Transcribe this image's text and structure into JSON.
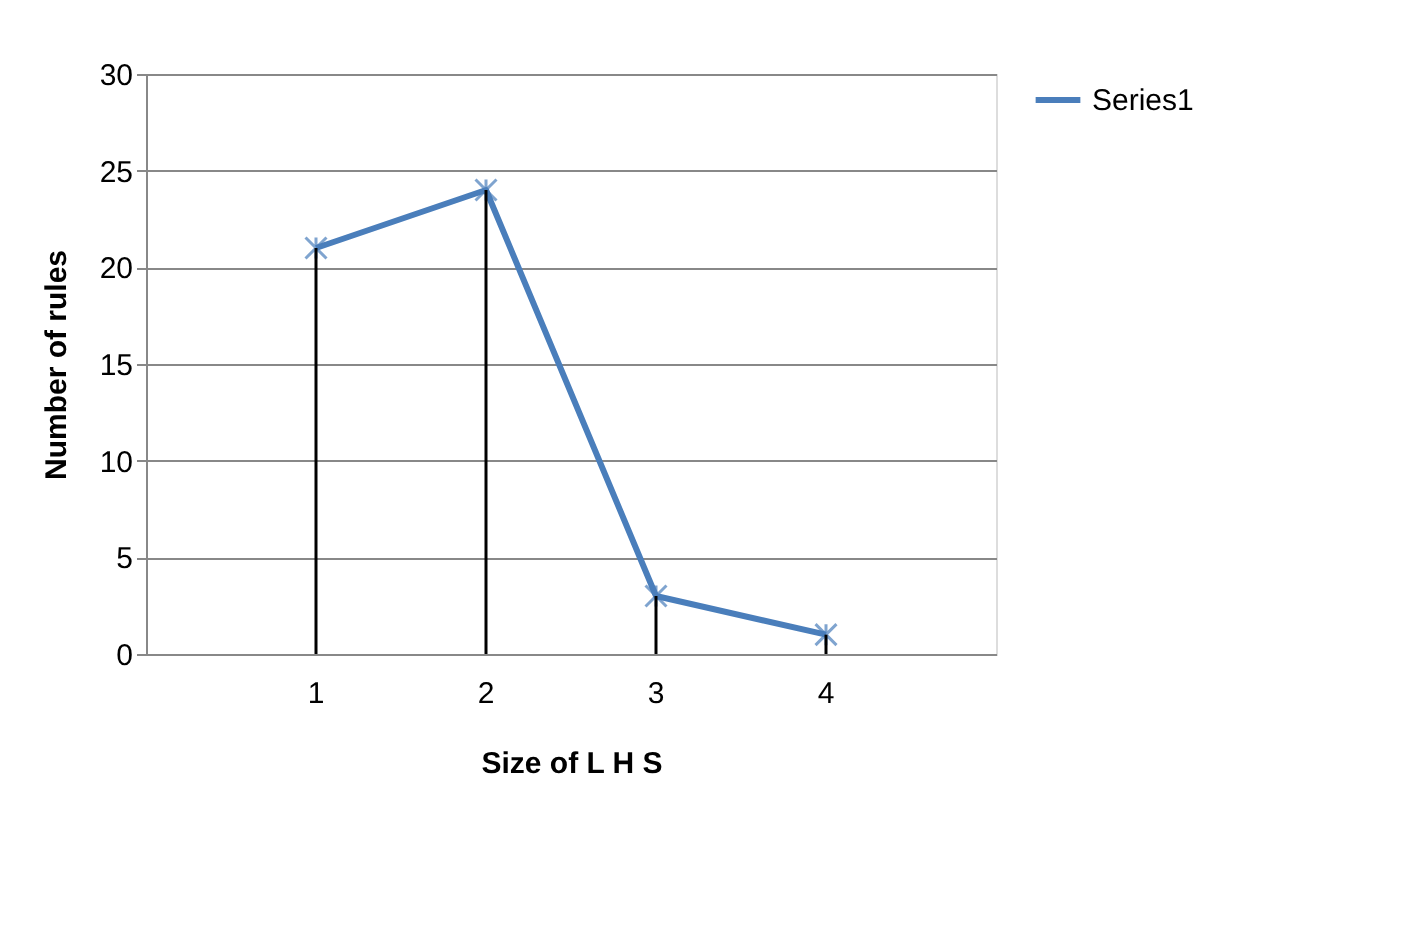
{
  "chart_data": {
    "type": "line",
    "xlabel": "Size of L H S",
    "ylabel": "Number of rules",
    "categories": [
      "1",
      "2",
      "3",
      "4"
    ],
    "series": [
      {
        "name": "Series1",
        "color": "#4a7ebb",
        "values": [
          21,
          24,
          3,
          1
        ]
      },
      {
        "type": "bar",
        "color": "#000000",
        "values": [
          21,
          24,
          3,
          1
        ]
      }
    ],
    "ylim": [
      0,
      30
    ],
    "yticks": [
      0,
      5,
      10,
      15,
      20,
      25,
      30
    ],
    "grid": "y",
    "legend": "right",
    "marker": "cross",
    "line_style": "solid"
  }
}
